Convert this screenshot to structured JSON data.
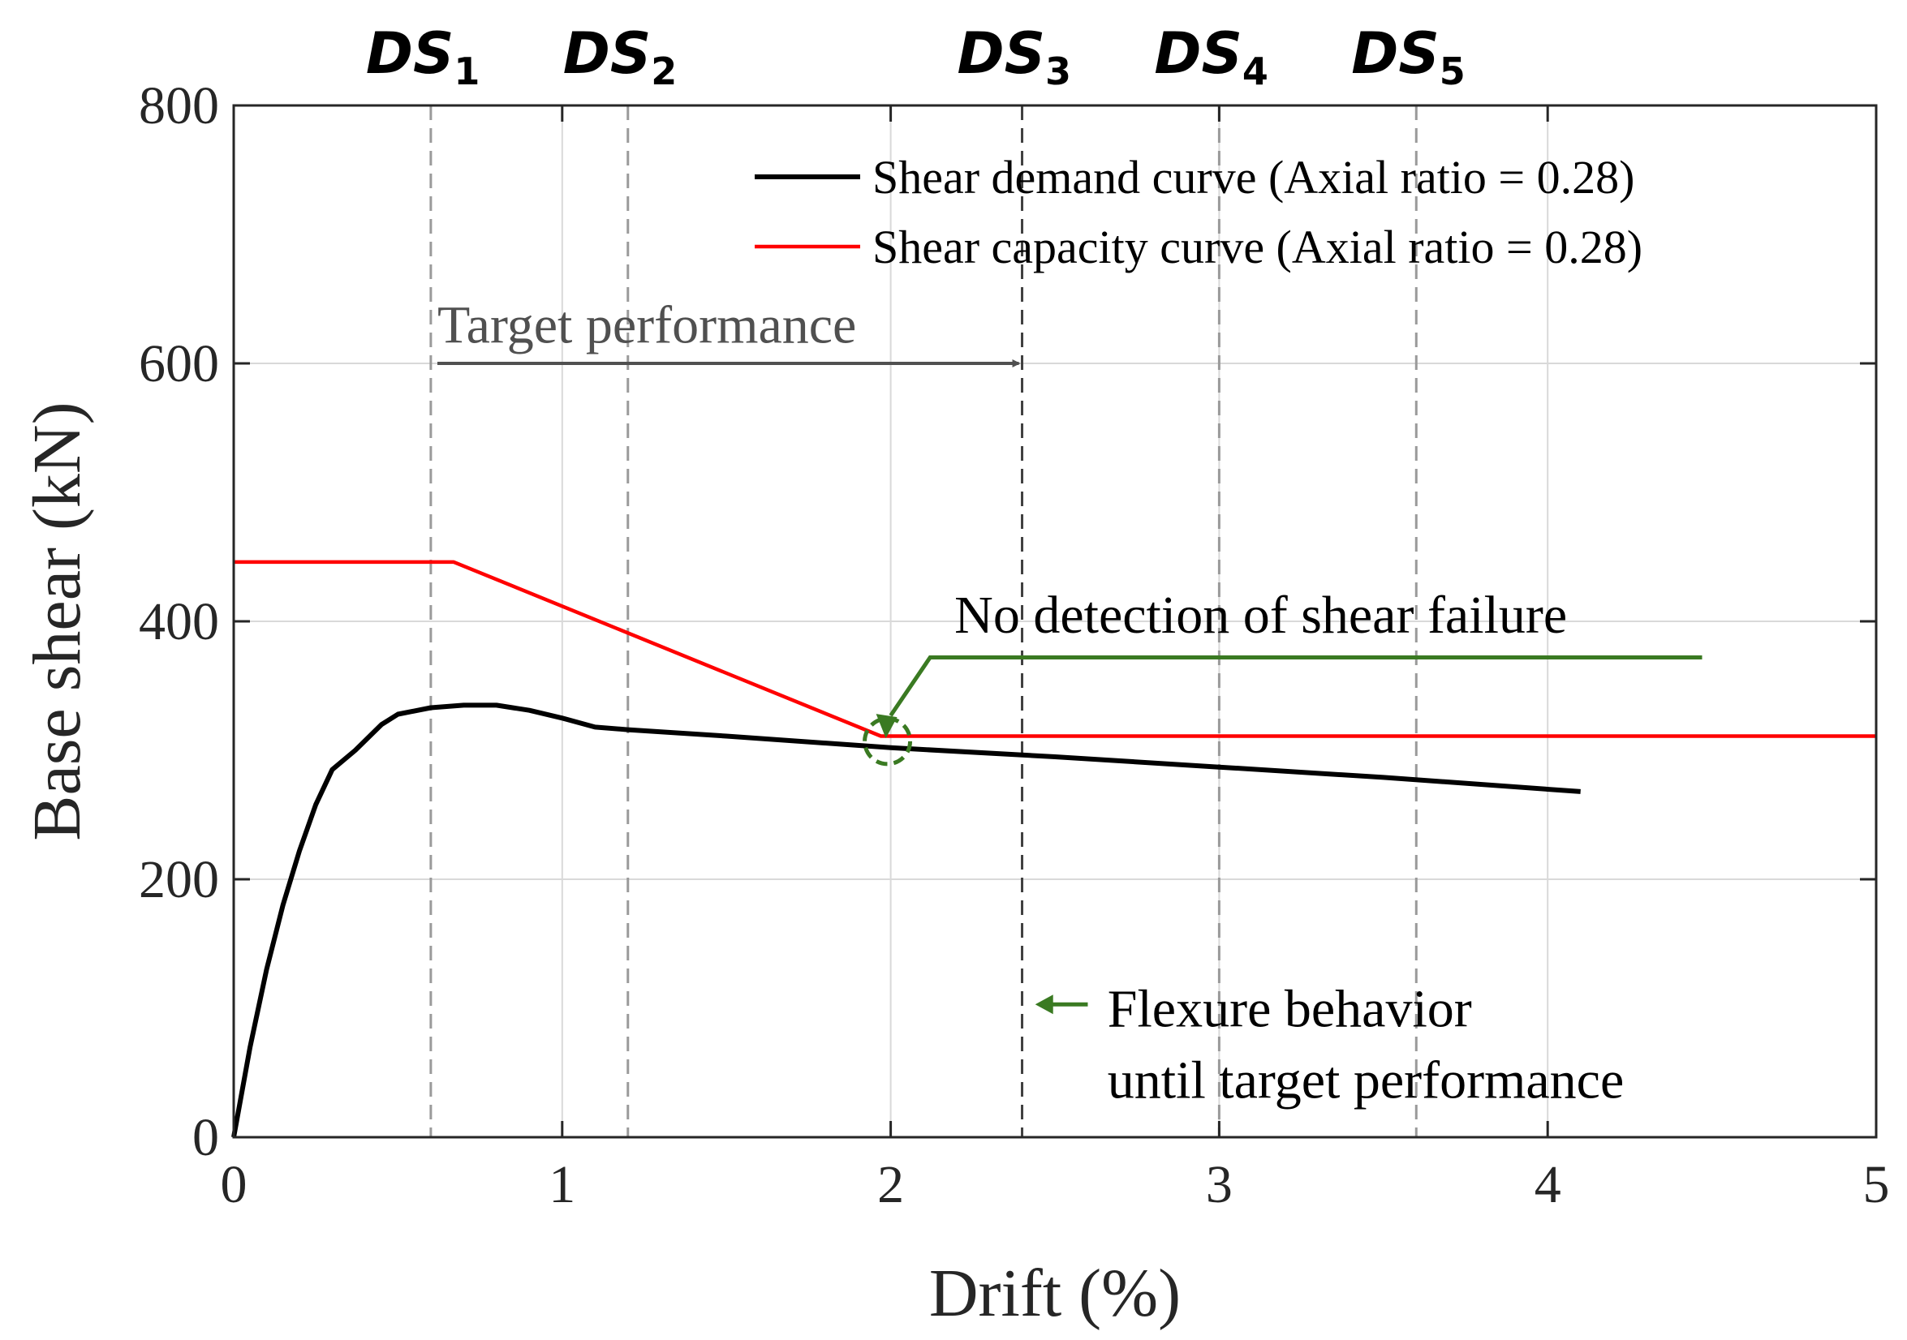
{
  "chart_data": {
    "type": "line",
    "title": "",
    "xlabel": "Drift (%)",
    "ylabel": "Base shear (kN)",
    "xlim": [
      0,
      5
    ],
    "ylim": [
      0,
      800
    ],
    "xticks": [
      0,
      1,
      2,
      3,
      4,
      5
    ],
    "yticks": [
      0,
      200,
      400,
      600,
      800
    ],
    "grid": true,
    "legend_position": "top-right",
    "series": [
      {
        "name": "Shear demand curve (Axial ratio = 0.28)",
        "color": "#000000",
        "points": [
          [
            0,
            0
          ],
          [
            0.05,
            70
          ],
          [
            0.1,
            130
          ],
          [
            0.15,
            180
          ],
          [
            0.2,
            222
          ],
          [
            0.25,
            258
          ],
          [
            0.3,
            285
          ],
          [
            0.37,
            300
          ],
          [
            0.45,
            320
          ],
          [
            0.5,
            328
          ],
          [
            0.6,
            333
          ],
          [
            0.7,
            335
          ],
          [
            0.8,
            335
          ],
          [
            0.9,
            331
          ],
          [
            1.0,
            325
          ],
          [
            1.1,
            318
          ],
          [
            1.2,
            316
          ],
          [
            1.5,
            311
          ],
          [
            2.0,
            302
          ],
          [
            2.5,
            295
          ],
          [
            3.0,
            287
          ],
          [
            3.5,
            279
          ],
          [
            4.1,
            268
          ]
        ]
      },
      {
        "name": "Shear capacity curve (Axial ratio = 0.28)",
        "color": "#ff0000",
        "points": [
          [
            0,
            446
          ],
          [
            0.67,
            446
          ],
          [
            1.97,
            311
          ],
          [
            5,
            311
          ]
        ]
      }
    ],
    "damage_states": [
      {
        "label": "DS",
        "sub": "1",
        "x": 0.6
      },
      {
        "label": "DS",
        "sub": "2",
        "x": 1.2
      },
      {
        "label": "DS",
        "sub": "3",
        "x": 2.4
      },
      {
        "label": "DS",
        "sub": "4",
        "x": 3.0
      },
      {
        "label": "DS",
        "sub": "5",
        "x": 3.6
      }
    ],
    "annotations": {
      "target_performance": {
        "text": "Target performance",
        "x_from": 0.62,
        "x_to": 2.4,
        "y": 600,
        "text_x": 0.62,
        "text_y": 630,
        "color": "#505050"
      },
      "no_detection": {
        "text": "No detection of shear failure",
        "text_x": 2.12,
        "text_y": 405,
        "line": [
          [
            4.47,
            372
          ],
          [
            2.12,
            372
          ],
          [
            2.0,
            327
          ]
        ],
        "circle": {
          "x": 1.99,
          "y": 307
        },
        "color": "#3a7a22"
      },
      "flexure": {
        "lines": [
          "Flexure behavior",
          "until target performance"
        ],
        "text_x": 2.66,
        "text_y": 92,
        "arrow_from_x": 2.6,
        "arrow_to_x": 2.44,
        "arrow_y": 103,
        "color": "#3a7a22"
      }
    }
  }
}
